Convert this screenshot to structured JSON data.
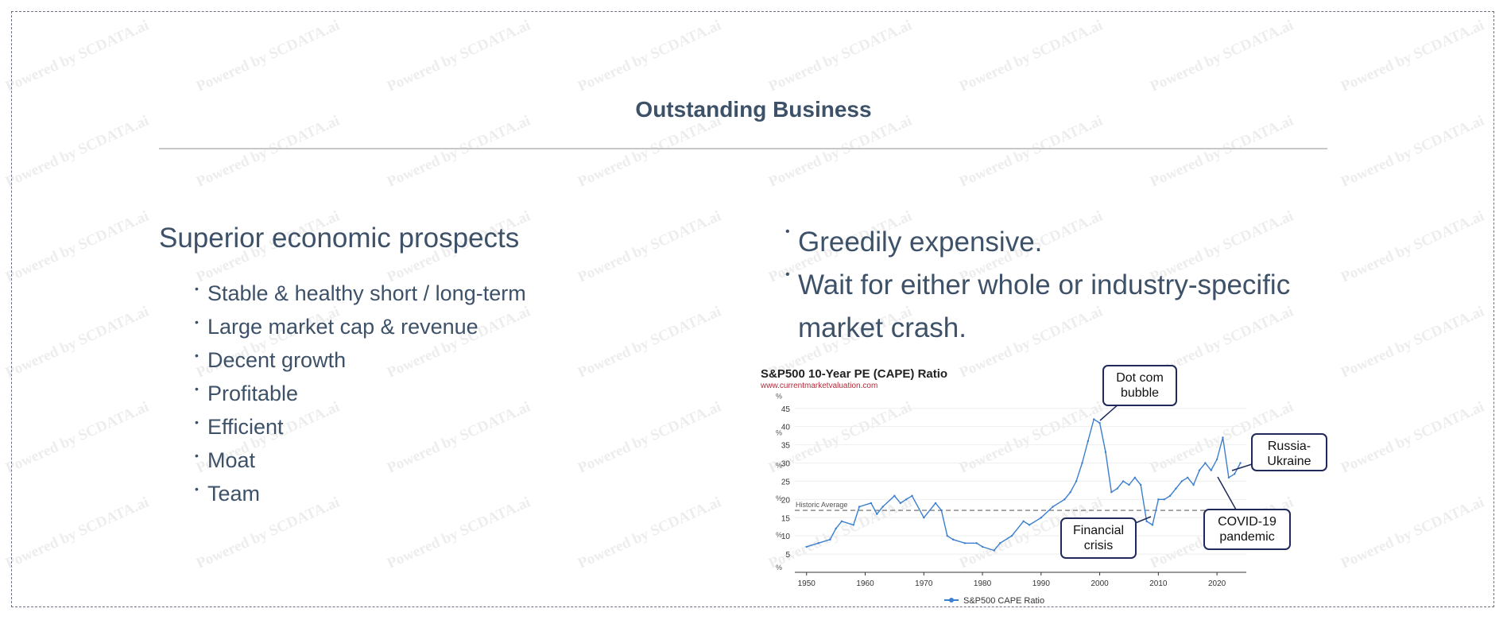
{
  "watermark_text": "Powered by SCDATA.ai",
  "slide": {
    "title": "Outstanding Business",
    "left_heading": "Superior economic prospects",
    "left_bullets": [
      "Stable & healthy short / long-term",
      "Large market cap & revenue",
      "Decent growth",
      "Profitable",
      "Efficient",
      "Moat",
      "Team"
    ],
    "right_bullets": [
      "Greedily expensive.",
      "Wait for either whole or industry-specific market crash."
    ],
    "bullet_glyph": "•"
  },
  "chart_data": {
    "type": "line",
    "title": "S&P500 10-Year PE (CAPE) Ratio",
    "subtitle": "www.currentmarketvaluation.com",
    "xlabel": "",
    "ylabel": "",
    "xlim": [
      1948,
      2025
    ],
    "ylim": [
      0,
      48
    ],
    "x_ticks": [
      1950,
      1960,
      1970,
      1980,
      1990,
      2000,
      2010,
      2020
    ],
    "y_ticks": [
      5,
      10,
      15,
      20,
      25,
      30,
      35,
      40,
      45
    ],
    "y_unit_mark": "%",
    "grid": true,
    "legend": "bottom-center",
    "series": [
      {
        "name": "S&P500 CAPE Ratio",
        "color": "#3b7fcf",
        "x": [
          1950,
          1952,
          1954,
          1955,
          1956,
          1958,
          1959,
          1961,
          1962,
          1963,
          1965,
          1966,
          1967,
          1968,
          1970,
          1972,
          1973,
          1974,
          1975,
          1977,
          1979,
          1980,
          1982,
          1983,
          1985,
          1987,
          1988,
          1990,
          1992,
          1994,
          1995,
          1996,
          1997,
          1998,
          1999,
          2000,
          2001,
          2002,
          2003,
          2004,
          2005,
          2006,
          2007,
          2008,
          2009,
          2010,
          2011,
          2012,
          2013,
          2014,
          2015,
          2016,
          2017,
          2018,
          2019,
          2020,
          2021,
          2022,
          2023,
          2024
        ],
        "values": [
          7,
          8,
          9,
          12,
          14,
          13,
          18,
          19,
          16,
          18,
          21,
          19,
          20,
          21,
          15,
          19,
          17,
          10,
          9,
          8,
          8,
          7,
          6,
          8,
          10,
          14,
          13,
          15,
          18,
          20,
          22,
          25,
          30,
          36,
          42,
          41,
          33,
          22,
          23,
          25,
          24,
          26,
          24,
          14,
          13,
          20,
          20,
          21,
          23,
          25,
          26,
          24,
          28,
          30,
          28,
          31,
          37,
          26,
          27,
          30
        ]
      }
    ],
    "reference_lines": [
      {
        "label": "Historic Average",
        "y": 17,
        "style": "dashed"
      }
    ],
    "annotations": [
      {
        "text": "Dot com bubble",
        "lines": [
          "Dot com",
          "bubble"
        ]
      },
      {
        "text": "Financial crisis",
        "lines": [
          "Financial",
          "crisis"
        ]
      },
      {
        "text": "COVID-19 pandemic",
        "lines": [
          "COVID-19",
          "pandemic"
        ]
      },
      {
        "text": "Russia-Ukraine",
        "lines": [
          "Russia-",
          "Ukraine"
        ]
      }
    ]
  }
}
